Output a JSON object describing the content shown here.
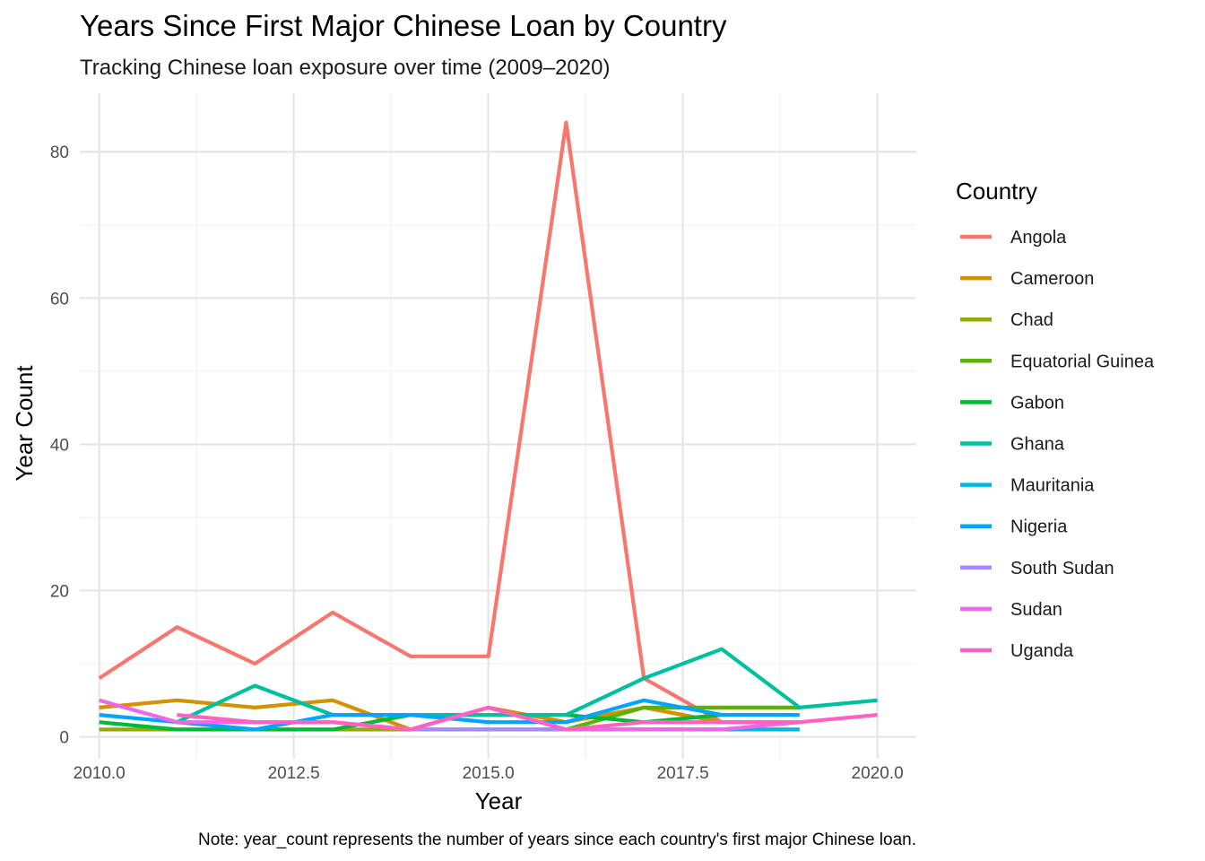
{
  "chart_data": {
    "type": "line",
    "title": "Years Since First Major Chinese Loan by Country",
    "subtitle": "Tracking Chinese loan exposure over time (2009–2020)",
    "xlabel": "Year",
    "ylabel": "Year Count",
    "caption": "Note: year_count represents the number of years since each country's first major Chinese loan.",
    "legend_title": "Country",
    "legend_position": "right",
    "grid": true,
    "xlim": [
      2009.75,
      2020.5
    ],
    "ylim": [
      -3,
      88
    ],
    "x_ticks": [
      2010.0,
      2012.5,
      2015.0,
      2017.5,
      2020.0
    ],
    "x_tick_labels": [
      "2010.0",
      "2012.5",
      "2015.0",
      "2017.5",
      "2020.0"
    ],
    "y_ticks": [
      0,
      20,
      40,
      60,
      80
    ],
    "y_tick_labels": [
      "0",
      "20",
      "40",
      "60",
      "80"
    ],
    "series": [
      {
        "name": "Angola",
        "color": "#F8766D",
        "points": [
          [
            2010,
            8
          ],
          [
            2011,
            15
          ],
          [
            2012,
            10
          ],
          [
            2013,
            17
          ],
          [
            2014,
            11
          ],
          [
            2015,
            11
          ],
          [
            2016,
            84
          ],
          [
            2017,
            8
          ],
          [
            2018,
            2
          ]
        ]
      },
      {
        "name": "Cameroon",
        "color": "#D39200",
        "points": [
          [
            2010,
            4
          ],
          [
            2011,
            5
          ],
          [
            2012,
            4
          ],
          [
            2013,
            5
          ],
          [
            2014,
            1
          ],
          [
            2015,
            4
          ],
          [
            2016,
            2
          ],
          [
            2017,
            4
          ],
          [
            2018,
            2
          ],
          [
            2019,
            2
          ]
        ]
      },
      {
        "name": "Chad",
        "color": "#93AA00",
        "points": [
          [
            2010,
            1
          ],
          [
            2011,
            1
          ],
          [
            2012,
            1
          ],
          [
            2013,
            1
          ],
          [
            2014,
            1
          ],
          [
            2015,
            1
          ],
          [
            2016,
            1
          ],
          [
            2017,
            1
          ],
          [
            2018,
            1
          ],
          [
            2019,
            1
          ]
        ]
      },
      {
        "name": "Equatorial Guinea",
        "color": "#5BB300",
        "points": [
          [
            2016,
            1
          ],
          [
            2017,
            4
          ],
          [
            2018,
            4
          ],
          [
            2019,
            4
          ]
        ]
      },
      {
        "name": "Gabon",
        "color": "#00BA38",
        "points": [
          [
            2010,
            2
          ],
          [
            2011,
            1
          ],
          [
            2012,
            1
          ],
          [
            2013,
            1
          ],
          [
            2014,
            3
          ],
          [
            2015,
            3
          ],
          [
            2016,
            3
          ],
          [
            2017,
            2
          ],
          [
            2018,
            3
          ]
        ]
      },
      {
        "name": "Ghana",
        "color": "#00C19F",
        "points": [
          [
            2011,
            2
          ],
          [
            2012,
            7
          ],
          [
            2013,
            3
          ],
          [
            2014,
            3
          ],
          [
            2015,
            3
          ],
          [
            2016,
            3
          ],
          [
            2017,
            8
          ],
          [
            2018,
            12
          ],
          [
            2019,
            4
          ],
          [
            2020,
            5
          ]
        ]
      },
      {
        "name": "Mauritania",
        "color": "#00B9E3",
        "points": [
          [
            2014,
            1
          ],
          [
            2015,
            1
          ],
          [
            2016,
            1
          ],
          [
            2017,
            1
          ],
          [
            2018,
            1
          ],
          [
            2019,
            1
          ]
        ]
      },
      {
        "name": "Nigeria",
        "color": "#00A5FF",
        "points": [
          [
            2010,
            3
          ],
          [
            2011,
            2
          ],
          [
            2012,
            1
          ],
          [
            2013,
            3
          ],
          [
            2014,
            3
          ],
          [
            2015,
            2
          ],
          [
            2016,
            2
          ],
          [
            2017,
            5
          ],
          [
            2018,
            3
          ],
          [
            2019,
            3
          ]
        ]
      },
      {
        "name": "South Sudan",
        "color": "#A58AFF",
        "points": [
          [
            2014,
            1
          ],
          [
            2015,
            1
          ],
          [
            2016,
            1
          ],
          [
            2017,
            1
          ],
          [
            2018,
            1
          ]
        ]
      },
      {
        "name": "Sudan",
        "color": "#F066EA",
        "points": [
          [
            2010,
            5
          ],
          [
            2011,
            2
          ],
          [
            2012,
            2
          ],
          [
            2013,
            2
          ],
          [
            2014,
            1
          ],
          [
            2015,
            4
          ],
          [
            2016,
            1
          ],
          [
            2017,
            1
          ],
          [
            2018,
            1
          ],
          [
            2019,
            2
          ]
        ]
      },
      {
        "name": "Uganda",
        "color": "#FF61C3",
        "points": [
          [
            2011,
            3
          ],
          [
            2012,
            2
          ],
          [
            2013,
            2
          ],
          [
            2014,
            1
          ],
          [
            2015,
            4
          ],
          [
            2016,
            1
          ],
          [
            2017,
            2
          ],
          [
            2018,
            2
          ],
          [
            2019,
            2
          ],
          [
            2020,
            3
          ]
        ]
      }
    ]
  }
}
